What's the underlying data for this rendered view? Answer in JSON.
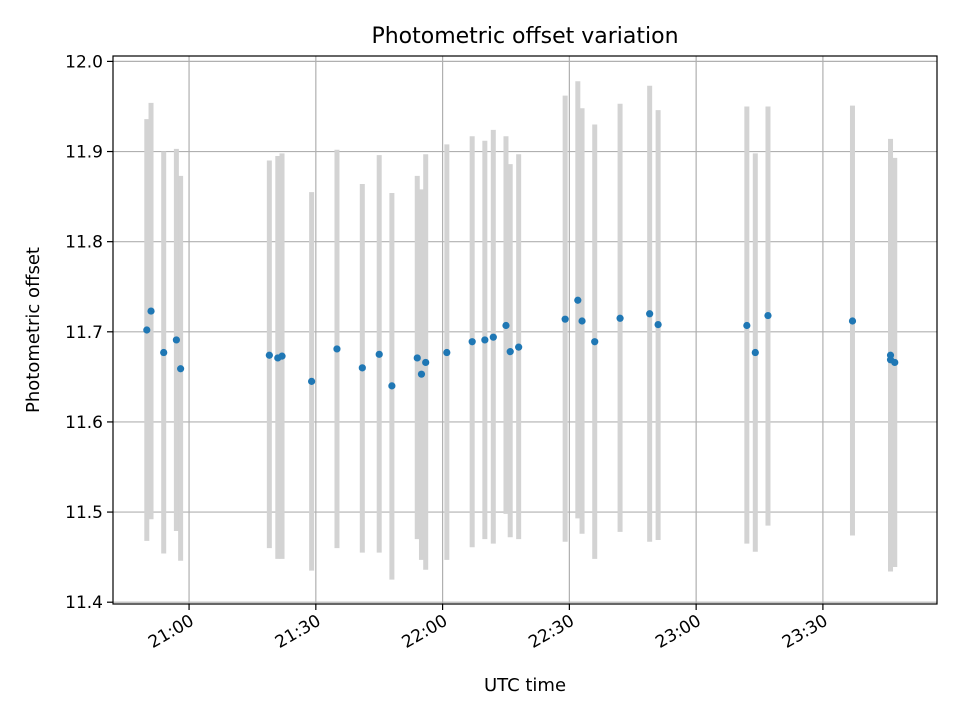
{
  "chart_data": {
    "type": "scatter",
    "title": "Photometric offset variation",
    "xlabel": "UTC time",
    "ylabel": "Photometric offset",
    "xlim": [
      "20:42",
      "23:57"
    ],
    "ylim": [
      11.4,
      12.0
    ],
    "grid": true,
    "colors": {
      "marker": "#1f77b4",
      "errorbar": "#d3d3d3",
      "grid": "#b0b0b0"
    },
    "x_ticks": [
      "21:00",
      "21:30",
      "22:00",
      "22:30",
      "23:00",
      "23:30"
    ],
    "y_ticks": [
      "11.4",
      "11.5",
      "11.6",
      "11.7",
      "11.8",
      "11.9",
      "12.0"
    ],
    "series": [
      {
        "points": [
          {
            "x": "20:50",
            "y": 11.702,
            "ylow": 11.468,
            "yhigh": 11.936
          },
          {
            "x": "20:51",
            "y": 11.723,
            "ylow": 11.492,
            "yhigh": 11.954
          },
          {
            "x": "20:54",
            "y": 11.677,
            "ylow": 11.454,
            "yhigh": 11.9
          },
          {
            "x": "20:57",
            "y": 11.691,
            "ylow": 11.479,
            "yhigh": 11.903
          },
          {
            "x": "20:58",
            "y": 11.659,
            "ylow": 11.446,
            "yhigh": 11.873
          },
          {
            "x": "21:19",
            "y": 11.674,
            "ylow": 11.46,
            "yhigh": 11.89
          },
          {
            "x": "21:21",
            "y": 11.671,
            "ylow": 11.448,
            "yhigh": 11.895
          },
          {
            "x": "21:22",
            "y": 11.673,
            "ylow": 11.448,
            "yhigh": 11.898
          },
          {
            "x": "21:29",
            "y": 11.645,
            "ylow": 11.435,
            "yhigh": 11.855
          },
          {
            "x": "21:35",
            "y": 11.681,
            "ylow": 11.46,
            "yhigh": 11.902
          },
          {
            "x": "21:41",
            "y": 11.66,
            "ylow": 11.455,
            "yhigh": 11.864
          },
          {
            "x": "21:45",
            "y": 11.675,
            "ylow": 11.455,
            "yhigh": 11.896
          },
          {
            "x": "21:48",
            "y": 11.64,
            "ylow": 11.425,
            "yhigh": 11.854
          },
          {
            "x": "21:54",
            "y": 11.671,
            "ylow": 11.47,
            "yhigh": 11.873
          },
          {
            "x": "21:55",
            "y": 11.653,
            "ylow": 11.447,
            "yhigh": 11.858
          },
          {
            "x": "21:56",
            "y": 11.666,
            "ylow": 11.436,
            "yhigh": 11.897
          },
          {
            "x": "22:01",
            "y": 11.677,
            "ylow": 11.447,
            "yhigh": 11.908
          },
          {
            "x": "22:07",
            "y": 11.689,
            "ylow": 11.461,
            "yhigh": 11.917
          },
          {
            "x": "22:10",
            "y": 11.691,
            "ylow": 11.47,
            "yhigh": 11.912
          },
          {
            "x": "22:12",
            "y": 11.694,
            "ylow": 11.465,
            "yhigh": 11.924
          },
          {
            "x": "22:15",
            "y": 11.707,
            "ylow": 11.498,
            "yhigh": 11.917
          },
          {
            "x": "22:16",
            "y": 11.678,
            "ylow": 11.472,
            "yhigh": 11.886
          },
          {
            "x": "22:18",
            "y": 11.683,
            "ylow": 11.47,
            "yhigh": 11.897
          },
          {
            "x": "22:29",
            "y": 11.714,
            "ylow": 11.467,
            "yhigh": 11.962
          },
          {
            "x": "22:32",
            "y": 11.735,
            "ylow": 11.493,
            "yhigh": 11.978
          },
          {
            "x": "22:33",
            "y": 11.712,
            "ylow": 11.476,
            "yhigh": 11.948
          },
          {
            "x": "22:36",
            "y": 11.689,
            "ylow": 11.448,
            "yhigh": 11.93
          },
          {
            "x": "22:42",
            "y": 11.715,
            "ylow": 11.478,
            "yhigh": 11.953
          },
          {
            "x": "22:49",
            "y": 11.72,
            "ylow": 11.467,
            "yhigh": 11.973
          },
          {
            "x": "22:51",
            "y": 11.708,
            "ylow": 11.469,
            "yhigh": 11.946
          },
          {
            "x": "23:12",
            "y": 11.707,
            "ylow": 11.465,
            "yhigh": 11.95
          },
          {
            "x": "23:14",
            "y": 11.677,
            "ylow": 11.456,
            "yhigh": 11.898
          },
          {
            "x": "23:17",
            "y": 11.718,
            "ylow": 11.485,
            "yhigh": 11.95
          },
          {
            "x": "23:37",
            "y": 11.712,
            "ylow": 11.474,
            "yhigh": 11.951
          },
          {
            "x": "23:46",
            "y": 11.674,
            "ylow": 11.434,
            "yhigh": 11.914
          },
          {
            "x": "23:46",
            "y": 11.669,
            "ylow": 11.436,
            "yhigh": 11.903
          },
          {
            "x": "23:47",
            "y": 11.666,
            "ylow": 11.439,
            "yhigh": 11.893
          }
        ]
      }
    ]
  }
}
